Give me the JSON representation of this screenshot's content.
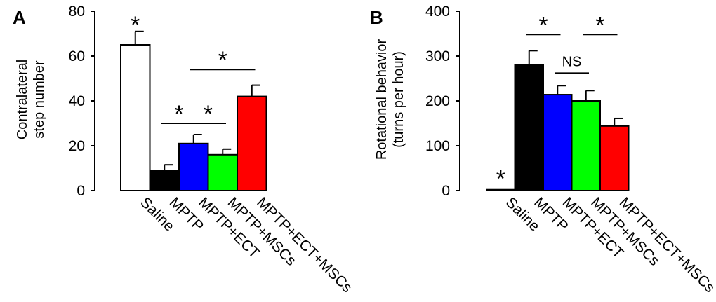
{
  "chart_data": [
    {
      "type": "bar",
      "panel_label": "A",
      "ylabel_lines": [
        "Contralateral",
        "step number"
      ],
      "ylim": [
        0,
        80
      ],
      "yticks": [
        0,
        20,
        40,
        60,
        80
      ],
      "categories": [
        "Saline",
        "MPTP",
        "MPTP+ECT",
        "MPTP+MSCs",
        "MPTP+ECT+MSCs"
      ],
      "values": [
        65,
        9,
        21,
        16,
        42
      ],
      "errors": [
        6,
        2.5,
        4,
        2.5,
        5
      ],
      "colors": [
        "#ffffff",
        "#000000",
        "#0000ff",
        "#00ff00",
        "#ff0000"
      ],
      "annotations": [
        {
          "type": "star",
          "label": "*",
          "over": 0
        },
        {
          "type": "bracket",
          "label": "*",
          "from": 1,
          "to": 2,
          "y": 30
        },
        {
          "type": "bracket",
          "label": "*",
          "from": 2,
          "to": 3,
          "y": 30
        },
        {
          "type": "bracket",
          "label": "*",
          "from": 2,
          "to": 4,
          "y": 54
        }
      ]
    },
    {
      "type": "bar",
      "panel_label": "B",
      "ylabel_lines": [
        "Rotational behavior",
        "(turns per hour)"
      ],
      "ylim": [
        0,
        400
      ],
      "yticks": [
        0,
        100,
        200,
        300,
        400
      ],
      "categories": [
        "Saline",
        "MPTP",
        "MPTP+ECT",
        "MPTP+MSCs",
        "MPTP+ECT+MSCs"
      ],
      "values": [
        2,
        280,
        214,
        200,
        144
      ],
      "errors": [
        0,
        32,
        20,
        23,
        17
      ],
      "colors": [
        "#ffffff",
        "#000000",
        "#0000ff",
        "#00ff00",
        "#ff0000"
      ],
      "annotations": [
        {
          "type": "star",
          "label": "*",
          "over": 0
        },
        {
          "type": "bracket",
          "label": "*",
          "from": 1,
          "to": 2,
          "y": 348
        },
        {
          "type": "bracket",
          "label": "NS",
          "from": 2,
          "to": 3,
          "y": 262
        },
        {
          "type": "bracket",
          "label": "*",
          "from": 3,
          "to": 4,
          "y": 348
        }
      ]
    }
  ]
}
